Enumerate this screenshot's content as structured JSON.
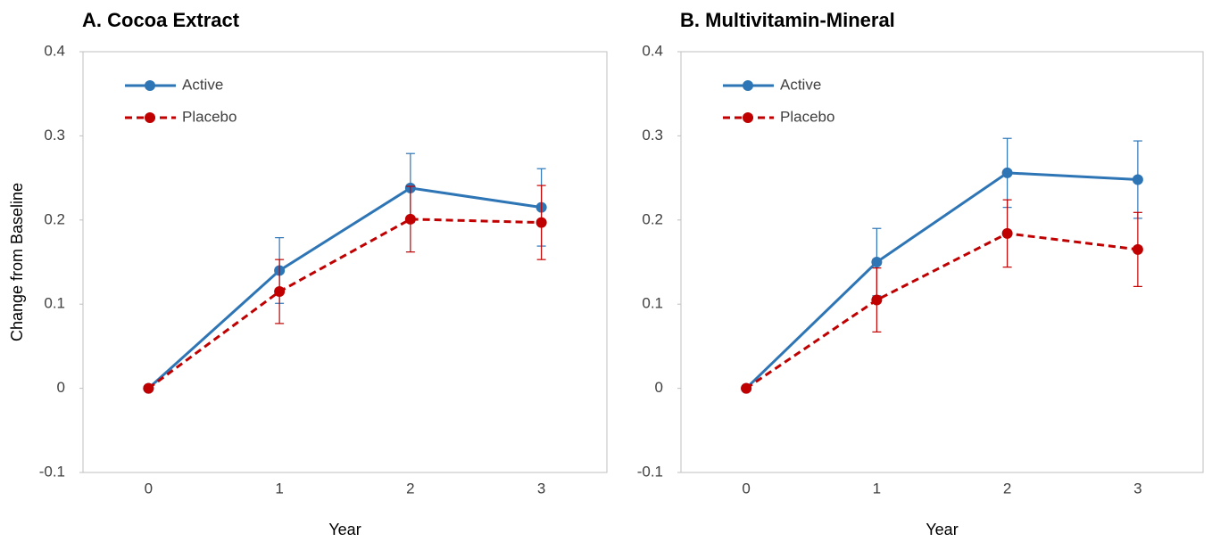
{
  "chart_data": [
    {
      "type": "line",
      "title": "A.  Cocoa Extract",
      "x_label": "Year",
      "y_label": "Change from Baseline",
      "categories": [
        "0",
        "1",
        "2",
        "3"
      ],
      "ylim": [
        -0.1,
        0.4
      ],
      "yticks": [
        -0.1,
        0,
        0.1,
        0.2,
        0.3,
        0.4
      ],
      "series": [
        {
          "name": "Active",
          "color": "#2e75b6",
          "dashed": false,
          "values": [
            0,
            0.14,
            0.238,
            0.215
          ],
          "errors": [
            0,
            0.039,
            0.041,
            0.046
          ]
        },
        {
          "name": "Placebo",
          "color": "#c00000",
          "dashed": true,
          "values": [
            0,
            0.115,
            0.201,
            0.197
          ],
          "errors": [
            0,
            0.038,
            0.039,
            0.044
          ]
        }
      ]
    },
    {
      "type": "line",
      "title": "B.  Multivitamin-Mineral",
      "x_label": "Year",
      "categories": [
        "0",
        "1",
        "2",
        "3"
      ],
      "ylim": [
        -0.1,
        0.4
      ],
      "yticks": [
        -0.1,
        0,
        0.1,
        0.2,
        0.3,
        0.4
      ],
      "series": [
        {
          "name": "Active",
          "color": "#2e75b6",
          "dashed": false,
          "values": [
            0,
            0.15,
            0.256,
            0.248
          ],
          "errors": [
            0,
            0.04,
            0.041,
            0.046
          ]
        },
        {
          "name": "Placebo",
          "color": "#c00000",
          "dashed": true,
          "values": [
            0,
            0.105,
            0.184,
            0.165
          ],
          "errors": [
            0,
            0.038,
            0.04,
            0.044
          ]
        }
      ]
    }
  ]
}
